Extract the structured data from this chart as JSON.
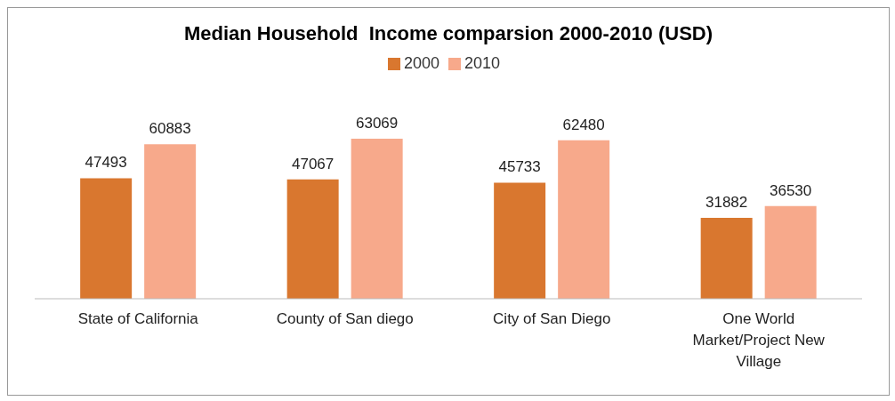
{
  "chart_data": {
    "type": "bar",
    "title": "Median Household  Income comparsion 2000-2010 (USD)",
    "categories": [
      "State of California",
      "County of San diego",
      "City of San Diego",
      "One World Market/Project New Village"
    ],
    "series": [
      {
        "name": "2000",
        "color": "#d9772f",
        "values": [
          47493,
          47067,
          45733,
          31882
        ]
      },
      {
        "name": "2010",
        "color": "#f7a98b",
        "values": [
          60883,
          63069,
          62480,
          36530
        ]
      }
    ],
    "data_labels": true,
    "legend": "top"
  }
}
